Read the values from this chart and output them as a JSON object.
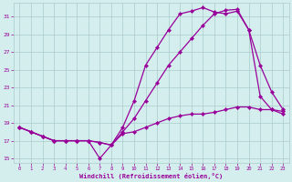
{
  "xlabel": "Windchill (Refroidissement éolien,°C)",
  "bg_color": "#d4eeee",
  "grid_color": "#aacccc",
  "line_color": "#990099",
  "xlim": [
    -0.5,
    23.5
  ],
  "ylim": [
    14.5,
    32.5
  ],
  "xticks": [
    0,
    1,
    2,
    3,
    4,
    5,
    6,
    7,
    8,
    9,
    10,
    11,
    12,
    13,
    14,
    15,
    16,
    17,
    18,
    19,
    20,
    21,
    22,
    23
  ],
  "yticks": [
    15,
    17,
    19,
    21,
    23,
    25,
    27,
    29,
    31
  ],
  "line1_x": [
    0,
    1,
    2,
    3,
    4,
    5,
    6,
    7,
    8,
    9,
    10,
    11,
    12,
    13,
    14,
    15,
    16,
    17,
    18,
    19,
    20,
    21,
    22,
    23
  ],
  "line1_y": [
    18.5,
    18.0,
    17.5,
    17.0,
    17.0,
    17.0,
    17.0,
    15.0,
    16.5,
    18.5,
    21.5,
    25.5,
    27.5,
    29.5,
    31.3,
    31.6,
    32.0,
    31.5,
    31.3,
    31.6,
    29.5,
    22.0,
    20.5,
    20.0
  ],
  "line2_x": [
    0,
    1,
    2,
    3,
    4,
    5,
    6,
    7,
    8,
    9,
    10,
    11,
    12,
    13,
    14,
    15,
    16,
    17,
    18,
    19,
    20,
    21,
    22,
    23
  ],
  "line2_y": [
    18.5,
    18.0,
    17.5,
    17.0,
    17.0,
    17.0,
    17.0,
    16.8,
    16.5,
    18.0,
    19.5,
    21.5,
    23.5,
    25.5,
    27.0,
    28.5,
    30.0,
    31.3,
    31.7,
    31.8,
    29.5,
    25.5,
    22.5,
    20.5
  ],
  "line3_x": [
    0,
    1,
    2,
    3,
    4,
    5,
    6,
    7,
    8,
    9,
    10,
    11,
    12,
    13,
    14,
    15,
    16,
    17,
    18,
    19,
    20,
    21,
    22,
    23
  ],
  "line3_y": [
    18.5,
    18.0,
    17.5,
    17.0,
    17.0,
    17.0,
    17.0,
    16.8,
    16.5,
    17.8,
    18.0,
    18.5,
    19.0,
    19.5,
    19.8,
    20.0,
    20.0,
    20.2,
    20.5,
    20.8,
    20.8,
    20.5,
    20.5,
    20.3
  ]
}
